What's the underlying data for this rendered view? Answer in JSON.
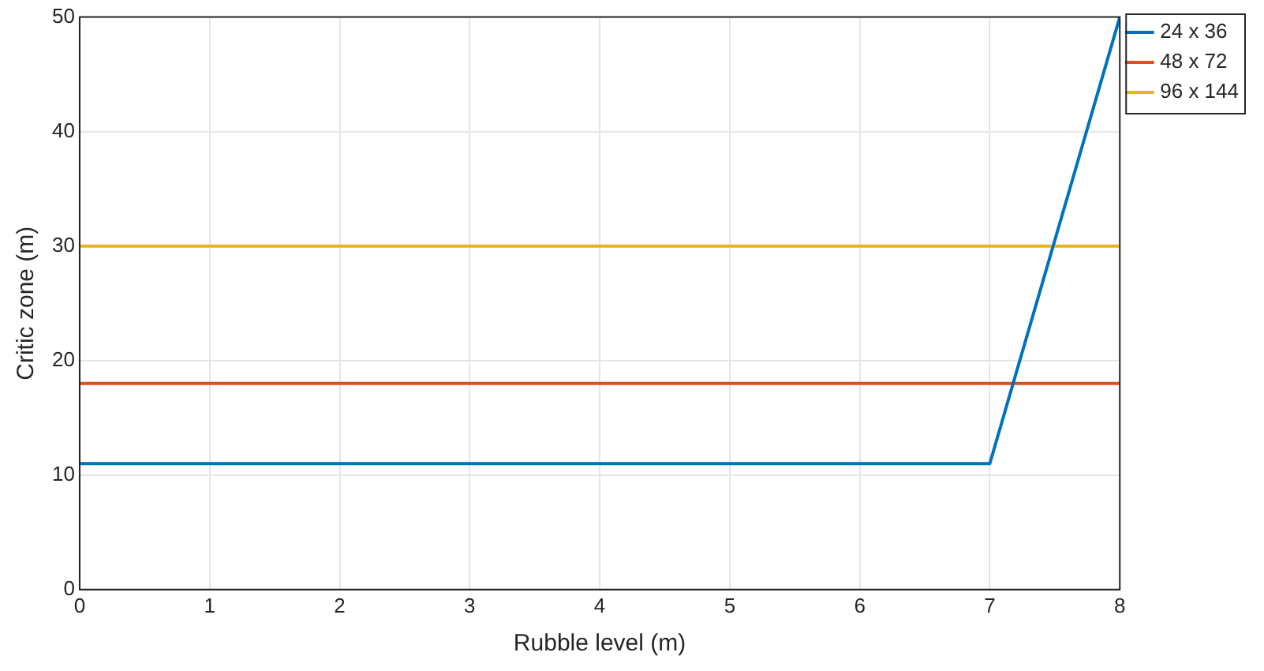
{
  "chart_data": {
    "type": "line",
    "xlabel": "Rubble level (m)",
    "ylabel": "Critic zone (m)",
    "xlim": [
      0,
      8
    ],
    "xticks": [
      0,
      1,
      2,
      3,
      4,
      5,
      6,
      7,
      8
    ],
    "ylim": [
      0,
      50
    ],
    "yticks": [
      0,
      10,
      20,
      30,
      40,
      50
    ],
    "grid": true,
    "legend": "top right",
    "marker": "none",
    "line_style": "solid",
    "series": [
      {
        "name": "24 x 36",
        "color": "#0072bd",
        "x": [
          0,
          7,
          8
        ],
        "values": [
          11,
          11,
          50
        ]
      },
      {
        "name": "48 x 72",
        "color": "#d95319",
        "x": [
          0,
          8
        ],
        "values": [
          18,
          18
        ]
      },
      {
        "name": "96 x 144",
        "color": "#edb120",
        "x": [
          0,
          8
        ],
        "values": [
          30,
          30
        ]
      }
    ]
  }
}
